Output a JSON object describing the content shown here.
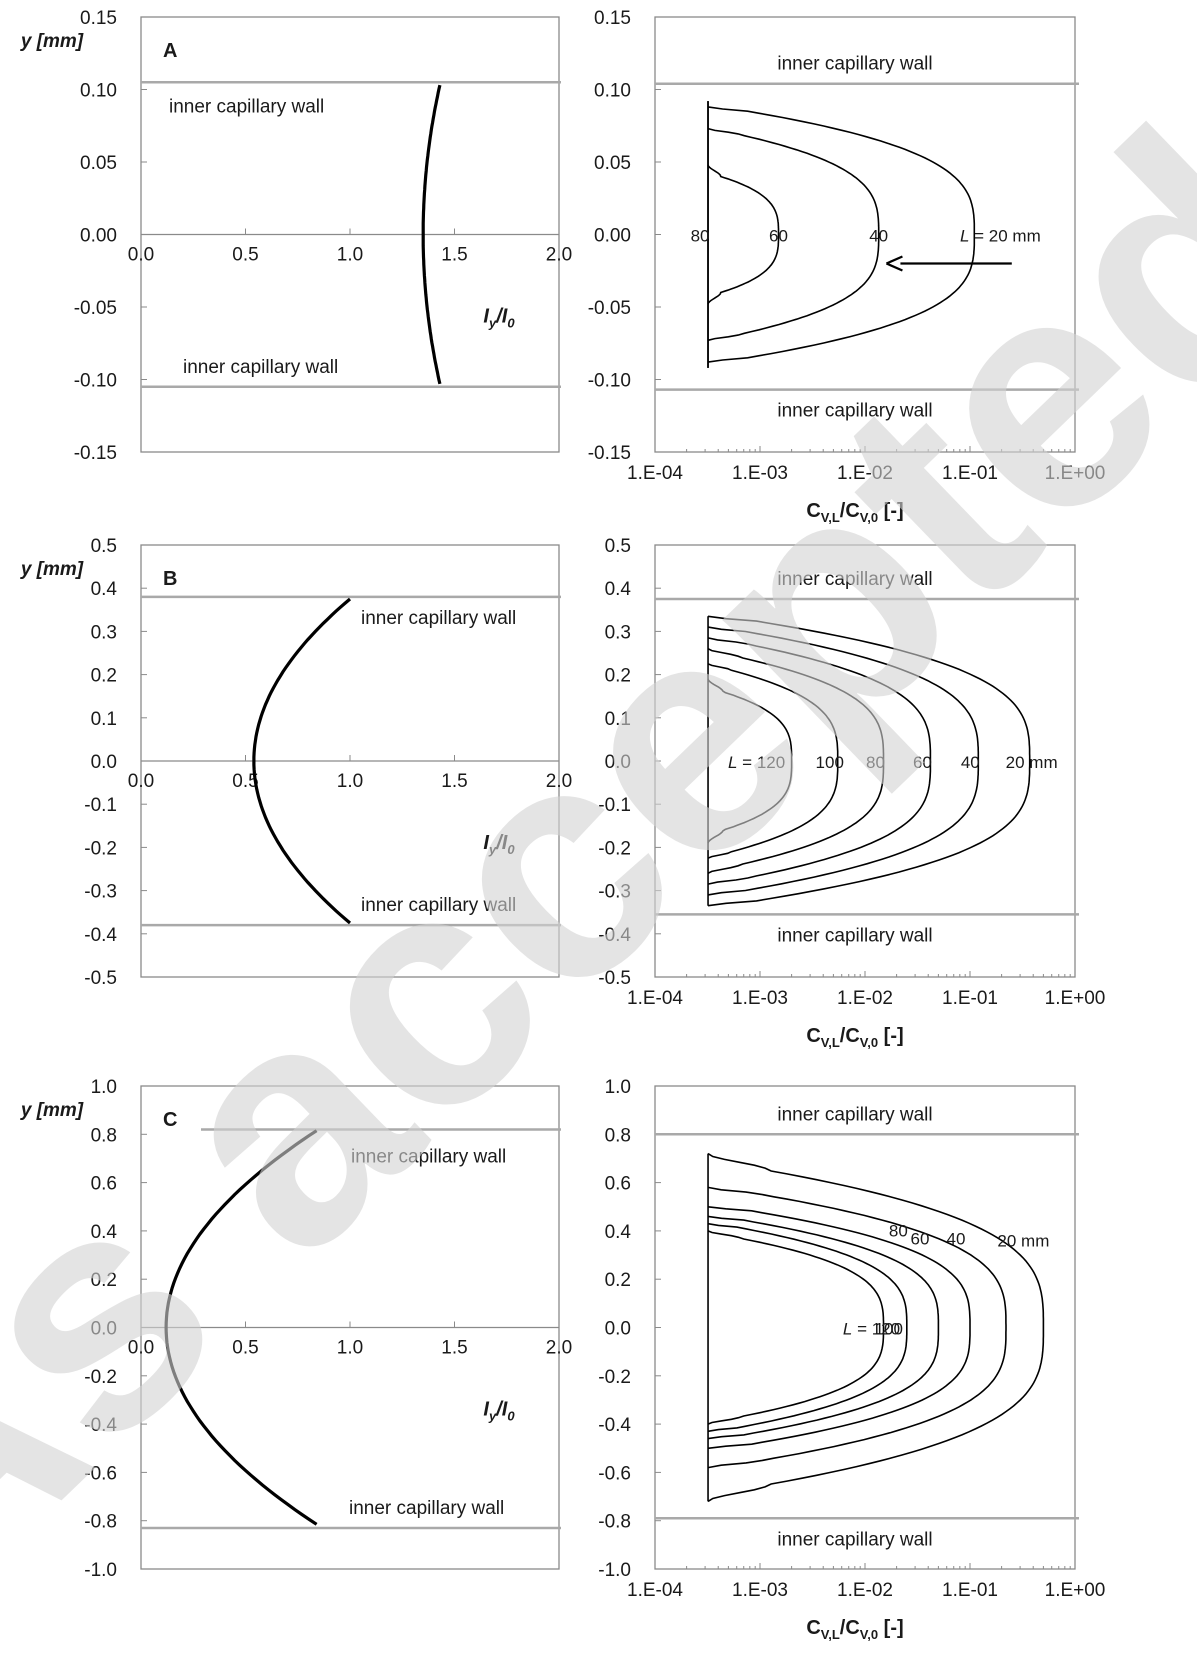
{
  "watermark": "As accepted",
  "shared": {
    "y_axis_label": "y [mm]",
    "right_x_axis_label_main": "C",
    "right_x_axis_label_sub_L": "V,L",
    "right_x_axis_label_slash": "/C",
    "right_x_axis_label_sub_0": "V,0",
    "right_x_axis_label_unit": " [-]",
    "left_x_axis_label_I": "I",
    "left_x_axis_label_sub_y": "y",
    "left_x_axis_label_slash": "/I",
    "left_x_axis_label_sub_0": "0",
    "wall_label": "inner capillary wall"
  },
  "chart_data": [
    {
      "panel": "A",
      "side": "left",
      "type": "line",
      "panel_label": "A",
      "xlabel": "Iy/I0",
      "ylabel": "y [mm]",
      "xlim": [
        0,
        2
      ],
      "ylim": [
        -0.15,
        0.15
      ],
      "x_ticks": [
        "0.0",
        "0.5",
        "1.0",
        "1.5",
        "2.0"
      ],
      "y_ticks": [
        "-0.15",
        "-0.10",
        "-0.05",
        "0.00",
        "0.05",
        "0.10",
        "0.15"
      ],
      "walls": [
        0.105,
        -0.105
      ],
      "profile": {
        "x_center": 1.35,
        "x_wall": 1.43,
        "y_extent": 0.103
      },
      "wall_labels": [
        {
          "text": "inner capillary wall",
          "y": 0.105
        },
        {
          "text": "inner capillary wall",
          "y": -0.105
        }
      ]
    },
    {
      "panel": "A",
      "side": "right",
      "type": "line",
      "xscale": "log",
      "xlabel": "CV,L/CV,0 [-]",
      "ylabel": "",
      "xlim": [
        0.0001,
        1
      ],
      "ylim": [
        -0.15,
        0.15
      ],
      "x_ticks": [
        "1.E-04",
        "1.E-03",
        "1.E-02",
        "1.E-01",
        "1.E+00"
      ],
      "y_ticks": [
        "-0.15",
        "-0.10",
        "-0.05",
        "0.00",
        "0.05",
        "0.10",
        "0.15"
      ],
      "walls": [
        0.104,
        -0.107
      ],
      "base": 0.00032,
      "series": [
        {
          "name": "L = 20 mm",
          "label": "L = 20 mm",
          "tip": 0.11,
          "half_width": 0.088,
          "boundary": 0.084
        },
        {
          "name": "40",
          "label": "40",
          "tip": 0.0135,
          "half_width": 0.073,
          "boundary": 0.069
        },
        {
          "name": "60",
          "label": "60",
          "tip": 0.0015,
          "half_width": 0.048,
          "boundary": 0.04
        },
        {
          "name": "80",
          "label": "80",
          "tip": 0.00032,
          "half_width": 0.092,
          "boundary": 0.0
        }
      ],
      "arrow": {
        "from": [
          0.25,
          -0.02
        ],
        "to": [
          0.016,
          -0.02
        ]
      },
      "wall_labels": [
        {
          "text": "inner capillary wall",
          "y": 0.104
        },
        {
          "text": "inner capillary wall",
          "y": -0.107
        }
      ]
    },
    {
      "panel": "B",
      "side": "left",
      "type": "line",
      "panel_label": "B",
      "xlabel": "Iy/I0",
      "ylabel": "y [mm]",
      "xlim": [
        0,
        2
      ],
      "ylim": [
        -0.5,
        0.5
      ],
      "x_ticks": [
        "0.0",
        "0.5",
        "1.0",
        "1.5",
        "2.0"
      ],
      "y_ticks": [
        "-0.5",
        "-0.4",
        "-0.3",
        "-0.2",
        "-0.1",
        "0.0",
        "0.1",
        "0.2",
        "0.3",
        "0.4",
        "0.5"
      ],
      "walls": [
        0.38,
        -0.38
      ],
      "profile": {
        "x_center": 0.54,
        "x_wall": 1.0,
        "y_extent": 0.375
      },
      "wall_labels": [
        {
          "text": "inner capillary wall",
          "y": 0.38
        },
        {
          "text": "inner capillary wall",
          "y": -0.38
        }
      ]
    },
    {
      "panel": "B",
      "side": "right",
      "type": "line",
      "xscale": "log",
      "xlabel": "CV,L/CV,0 [-]",
      "ylabel": "",
      "xlim": [
        0.0001,
        1
      ],
      "ylim": [
        -0.5,
        0.5
      ],
      "x_ticks": [
        "1.E-04",
        "1.E-03",
        "1.E-02",
        "1.E-01",
        "1.E+00"
      ],
      "y_ticks": [
        "-0.5",
        "-0.4",
        "-0.3",
        "-0.2",
        "-0.1",
        "0.0",
        "0.1",
        "0.2",
        "0.3",
        "0.4",
        "0.5"
      ],
      "walls": [
        0.375,
        -0.355
      ],
      "base": 0.00032,
      "series": [
        {
          "name": "20 mm",
          "label": "20 mm",
          "tip": 0.37,
          "half_width": 0.335,
          "boundary": 0.32
        },
        {
          "name": "40",
          "label": "40",
          "tip": 0.12,
          "half_width": 0.31,
          "boundary": 0.295
        },
        {
          "name": "60",
          "label": "60",
          "tip": 0.042,
          "half_width": 0.285,
          "boundary": 0.27
        },
        {
          "name": "80",
          "label": "80",
          "tip": 0.015,
          "half_width": 0.26,
          "boundary": 0.24
        },
        {
          "name": "100",
          "label": "100",
          "tip": 0.0055,
          "half_width": 0.225,
          "boundary": 0.21
        },
        {
          "name": "L = 120",
          "label": "L = 120",
          "tip": 0.002,
          "half_width": 0.19,
          "boundary": 0.16
        }
      ],
      "wall_labels": [
        {
          "text": "inner capillary wall",
          "y": 0.375
        },
        {
          "text": "inner capillary wall",
          "y": -0.355
        }
      ]
    },
    {
      "panel": "C",
      "side": "left",
      "type": "line",
      "panel_label": "C",
      "xlabel": "Iy/I0",
      "ylabel": "y [mm]",
      "xlim": [
        0,
        2
      ],
      "ylim": [
        -1.0,
        1.0
      ],
      "x_ticks": [
        "0.0",
        "0.5",
        "1.0",
        "1.5",
        "2.0"
      ],
      "y_ticks": [
        "-1.0",
        "-0.8",
        "-0.6",
        "-0.4",
        "-0.2",
        "0.0",
        "0.2",
        "0.4",
        "0.6",
        "0.8",
        "1.0"
      ],
      "walls": [
        0.82,
        -0.83
      ],
      "profile": {
        "x_center": 0.12,
        "x_wall": 0.84,
        "y_extent": 0.815
      },
      "wall_labels": [
        {
          "text": "inner capillary wall",
          "y": 0.82
        },
        {
          "text": "inner capillary wall",
          "y": -0.83
        }
      ]
    },
    {
      "panel": "C",
      "side": "right",
      "type": "line",
      "xscale": "log",
      "xlabel": "CV,L/CV,0 [-]",
      "ylabel": "",
      "xlim": [
        0.0001,
        1
      ],
      "ylim": [
        -1.0,
        1.0
      ],
      "x_ticks": [
        "1.E-04",
        "1.E-03",
        "1.E-02",
        "1.E-01",
        "1.E+00"
      ],
      "y_ticks": [
        "-1.0",
        "-0.8",
        "-0.6",
        "-0.4",
        "-0.2",
        "0.0",
        "0.2",
        "0.4",
        "0.6",
        "0.8",
        "1.0"
      ],
      "walls": [
        0.8,
        -0.79
      ],
      "base": 0.00032,
      "series": [
        {
          "name": "20 mm",
          "label": "20 mm",
          "tip": 0.5,
          "half_width": 0.72,
          "boundary": 0.65
        },
        {
          "name": "40",
          "label": "40",
          "tip": 0.22,
          "half_width": 0.58,
          "boundary": 0.55
        },
        {
          "name": "60",
          "label": "60",
          "tip": 0.1,
          "half_width": 0.5,
          "boundary": 0.48
        },
        {
          "name": "80",
          "label": "80",
          "tip": 0.05,
          "half_width": 0.46,
          "boundary": 0.44
        },
        {
          "name": "100",
          "label": "100",
          "tip": 0.025,
          "half_width": 0.43,
          "boundary": 0.41
        },
        {
          "name": "L = 120",
          "label": "L = 120",
          "tip": 0.015,
          "half_width": 0.4,
          "boundary": 0.37
        }
      ],
      "wall_labels": [
        {
          "text": "inner capillary wall",
          "y": 0.8
        },
        {
          "text": "inner capillary wall",
          "y": -0.79
        }
      ]
    }
  ]
}
